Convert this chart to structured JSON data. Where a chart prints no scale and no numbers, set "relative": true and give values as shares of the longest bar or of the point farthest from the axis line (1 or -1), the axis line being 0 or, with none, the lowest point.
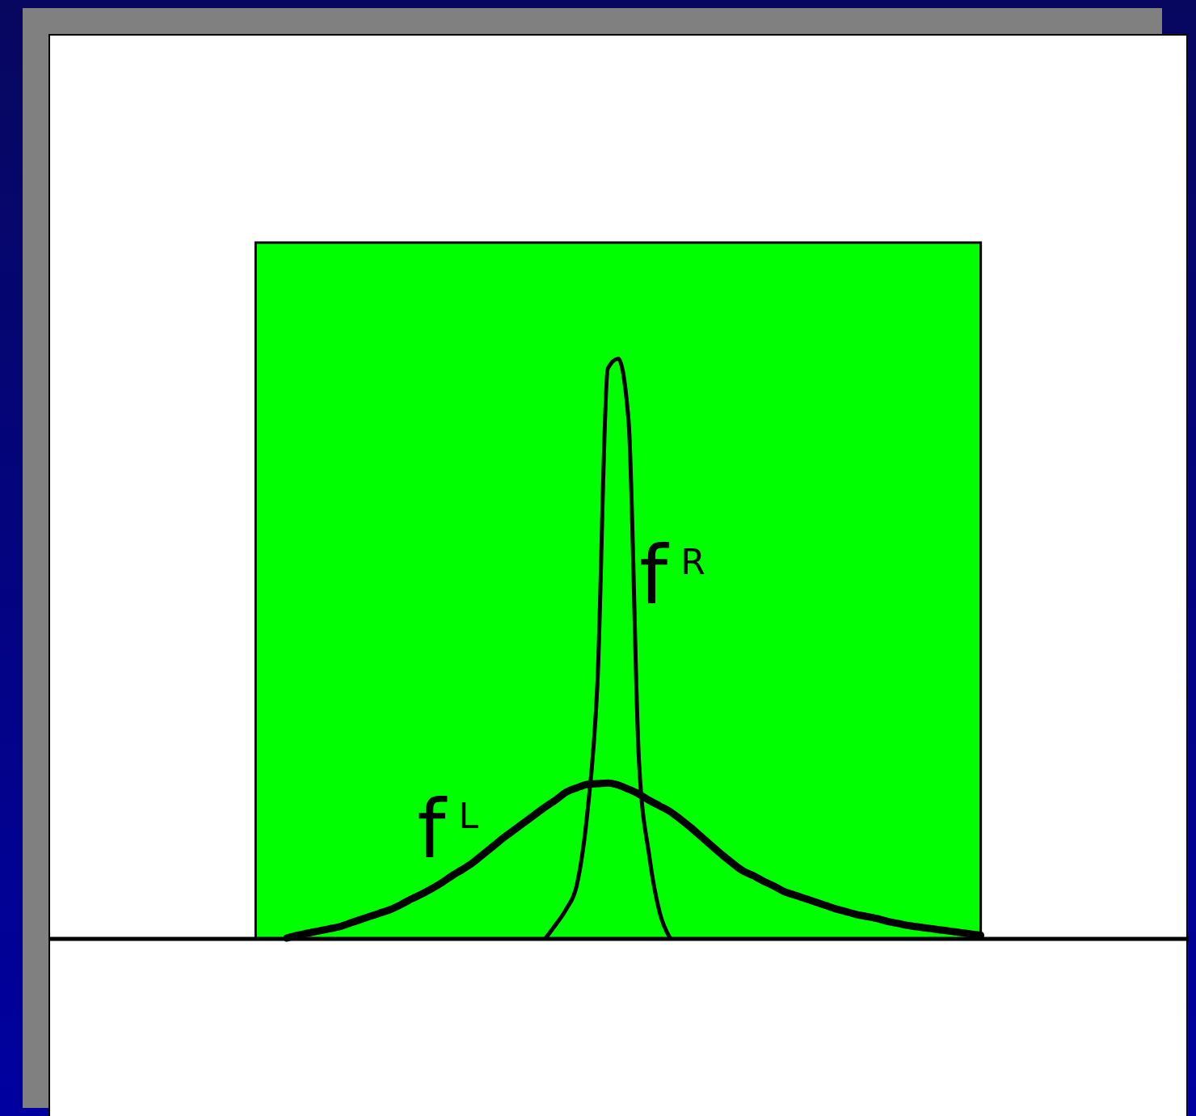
{
  "chart_data": {
    "type": "line",
    "relative": true,
    "categories": [
      null,
      null,
      null,
      null,
      null,
      null,
      null,
      null,
      null,
      null,
      null,
      null,
      null,
      null,
      null,
      null,
      null,
      null,
      null,
      null,
      null,
      null,
      null,
      null,
      null,
      null,
      null,
      null,
      null,
      null,
      null,
      null,
      null,
      null,
      null,
      null,
      null,
      null,
      null,
      null,
      null,
      null,
      null,
      null,
      null,
      null,
      null,
      null,
      null,
      null,
      null,
      null,
      null,
      null,
      null,
      null,
      null,
      null,
      null,
      null,
      null,
      null,
      null,
      null,
      null,
      null,
      null,
      null,
      null,
      null,
      null,
      null,
      null,
      null,
      null,
      null,
      null,
      null,
      null,
      null,
      null,
      null,
      null,
      null,
      null,
      null,
      null,
      null,
      null,
      null,
      null,
      null,
      null,
      null,
      null,
      null,
      null,
      null,
      null,
      null,
      null,
      null,
      null,
      null,
      null,
      null,
      null,
      null,
      null,
      null,
      null
    ],
    "series": [
      {
        "type": "area",
        "color": "#00ff00",
        "values": [
          null,
          null,
          null,
          null,
          null,
          null,
          null,
          null,
          null,
          null,
          null,
          null,
          null,
          null,
          null,
          null,
          null,
          null,
          null,
          null,
          1,
          1,
          1,
          1,
          1,
          1,
          1,
          1,
          1,
          1,
          1,
          1,
          1,
          1,
          1,
          1,
          1,
          1,
          1,
          1,
          1,
          1,
          1,
          1,
          1,
          1,
          1,
          1,
          1,
          1,
          1,
          1,
          1,
          1,
          1,
          1,
          1,
          1,
          1,
          1,
          1,
          1,
          1,
          1,
          1,
          1,
          1,
          1,
          1,
          1,
          1,
          1,
          1,
          1,
          1,
          1,
          1,
          1,
          1,
          1,
          1,
          1,
          1,
          1,
          1,
          1,
          1,
          1,
          1,
          1,
          1,
          null,
          null,
          null,
          null,
          null,
          null,
          null,
          null,
          null,
          null,
          null,
          null,
          null,
          null,
          null,
          null,
          null,
          null,
          null,
          null
        ]
      },
      {
        "name": "f$^{L}$",
        "color": "#000000",
        "values": [
          null,
          null,
          null,
          null,
          null,
          null,
          null,
          null,
          null,
          null,
          null,
          null,
          null,
          null,
          null,
          null,
          null,
          null,
          null,
          null,
          null,
          null,
          null,
          0,
          0.004,
          0.007,
          0.01,
          0.013,
          0.016,
          0.021,
          0.026,
          0.031,
          0.036,
          0.041,
          0.048,
          0.056,
          0.063,
          0.071,
          0.08,
          0.09,
          0.099,
          0.109,
          0.121,
          0.133,
          0.145,
          0.156,
          0.167,
          0.178,
          0.189,
          0.199,
          0.21,
          0.216,
          0.221,
          0.222,
          0.223,
          0.22,
          0.214,
          0.207,
          0.198,
          0.19,
          0.182,
          0.171,
          0.159,
          0.146,
          0.133,
          0.12,
          0.108,
          0.097,
          0.09,
          0.082,
          0.075,
          0.067,
          0.062,
          0.057,
          0.052,
          0.047,
          0.042,
          0.038,
          0.034,
          0.031,
          0.028,
          0.024,
          0.021,
          0.018,
          0.016,
          0.014,
          0.012,
          0.01,
          0.008,
          0.006,
          0.004,
          null,
          null,
          null,
          null,
          null,
          null,
          null,
          null,
          null,
          null,
          null,
          null,
          null,
          null,
          null,
          null,
          null,
          null,
          null,
          null
        ]
      },
      {
        "name": "f$^{R}$",
        "color": "#000000",
        "values": [
          null,
          null,
          null,
          null,
          null,
          null,
          null,
          null,
          null,
          null,
          null,
          null,
          null,
          null,
          null,
          null,
          null,
          null,
          null,
          null,
          null,
          null,
          null,
          null,
          null,
          null,
          null,
          null,
          null,
          null,
          null,
          null,
          null,
          null,
          null,
          null,
          null,
          null,
          null,
          null,
          null,
          null,
          null,
          null,
          null,
          null,
          null,
          null,
          0,
          0.02,
          0.042,
          0.076,
          0.177,
          0.368,
          0.819,
          0.833,
          0.744,
          0.256,
          0.118,
          0.037,
          0,
          null,
          null,
          null,
          null,
          null,
          null,
          null,
          null,
          null,
          null,
          null,
          null,
          null,
          null,
          null,
          null,
          null,
          null,
          null,
          null,
          null,
          null,
          null,
          null,
          null,
          null,
          null,
          null,
          null,
          null,
          null,
          null,
          null,
          null,
          null,
          null,
          null,
          null,
          null,
          null,
          null,
          null,
          null,
          null,
          null,
          null,
          null,
          null,
          null,
          null
        ]
      }
    ]
  }
}
